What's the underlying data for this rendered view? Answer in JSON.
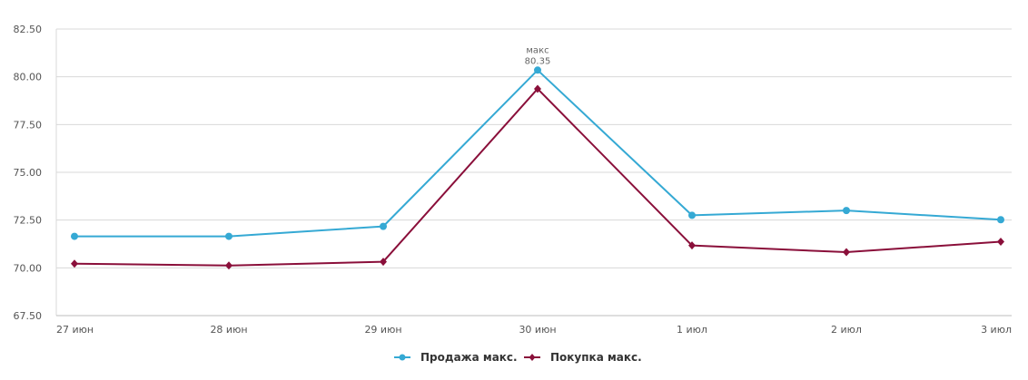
{
  "chart_data": {
    "type": "line",
    "title": "",
    "xlabel": "",
    "ylabel": "",
    "categories": [
      "27 июн",
      "28 июн",
      "29 июн",
      "30 июн",
      "1 июл",
      "2 июл",
      "3 июл"
    ],
    "ylim": [
      67.5,
      82.5
    ],
    "yticks": [
      "67.50",
      "70.00",
      "72.50",
      "75.00",
      "77.50",
      "80.00",
      "82.50"
    ],
    "grid": true,
    "legend_position": "bottom-center",
    "series": [
      {
        "name": "Продажа макс.",
        "color": "#35a9d4",
        "marker": "circle",
        "values": [
          71.65,
          71.65,
          72.17,
          80.35,
          72.75,
          73.0,
          72.52
        ]
      },
      {
        "name": "Покупка макс.",
        "color": "#8a0f3a",
        "marker": "diamond",
        "values": [
          70.22,
          70.12,
          70.32,
          79.37,
          71.17,
          70.82,
          71.37
        ]
      }
    ],
    "annotations": [
      {
        "label": "макс",
        "value": "80.35",
        "series": 0,
        "index": 3
      }
    ]
  }
}
